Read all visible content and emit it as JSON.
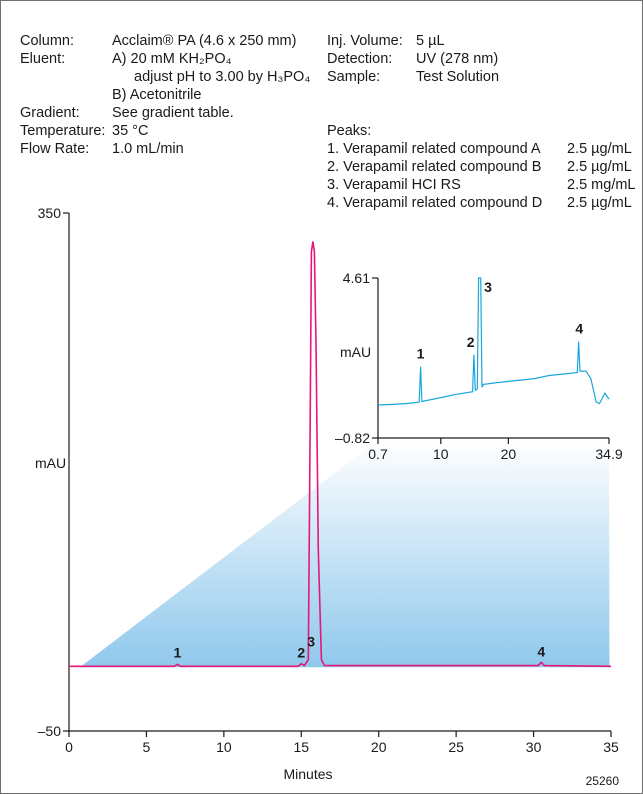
{
  "conditions": {
    "column_label": "Column:",
    "column_value": "Acclaim® PA (4.6 x 250 mm)",
    "eluent_label": "Eluent:",
    "eluent_a1": "A)  20 mM KH₂PO₄",
    "eluent_a2": "adjust pH to 3.00 by H₃PO₄",
    "eluent_b": "B)  Acetonitrile",
    "gradient_label": "Gradient:",
    "gradient_value": "See gradient table.",
    "temperature_label": "Temperature:",
    "temperature_value": "35 °C",
    "flow_label": "Flow Rate:",
    "flow_value": "1.0 mL/min",
    "inj_label": "Inj. Volume:",
    "inj_value": "5 µL",
    "detection_label": "Detection:",
    "detection_value": "UV (278 nm)",
    "sample_label": "Sample:",
    "sample_value": "Test Solution",
    "peaks_label": "Peaks:",
    "peaks": [
      {
        "name": "1. Verapamil related compound A",
        "conc": "2.5  µg/mL"
      },
      {
        "name": "2. Verapamil related compound B",
        "conc": "2.5  µg/mL"
      },
      {
        "name": "3. Verapamil HCI RS",
        "conc": "2.5  mg/mL"
      },
      {
        "name": "4. Verapamil related compound D",
        "conc": "2.5  µg/mL"
      }
    ]
  },
  "figure_code": "25260",
  "colors": {
    "main_trace": "#e5177b",
    "inset_trace": "#1aa6dc",
    "zoom_fill": "#8fc8ec"
  },
  "chart_data": [
    {
      "type": "line",
      "xlabel": "Minutes",
      "ylabel": "mAU",
      "xlim": [
        0,
        35
      ],
      "ylim": [
        -50,
        350
      ],
      "x_ticks": [
        0,
        5,
        10,
        15,
        20,
        25,
        30,
        35
      ],
      "y_ticks": [
        -50,
        350
      ],
      "peak_labels": [
        {
          "label": "1",
          "x": 7.0,
          "y": 2
        },
        {
          "label": "2",
          "x": 15.0,
          "y": 2
        },
        {
          "label": "3",
          "x": 15.7,
          "y": 328
        },
        {
          "label": "4",
          "x": 30.5,
          "y": 3
        }
      ],
      "series": [
        {
          "values": [
            [
              0,
              0
            ],
            [
              6.8,
              0
            ],
            [
              7.0,
              1.5
            ],
            [
              7.2,
              0
            ],
            [
              14.8,
              0
            ],
            [
              15.0,
              2
            ],
            [
              15.2,
              0.5
            ],
            [
              15.45,
              5
            ],
            [
              15.55,
              150
            ],
            [
              15.65,
              320
            ],
            [
              15.75,
              328
            ],
            [
              15.85,
              320
            ],
            [
              15.95,
              250
            ],
            [
              16.1,
              90
            ],
            [
              16.3,
              5
            ],
            [
              16.5,
              0.5
            ],
            [
              30.3,
              0.5
            ],
            [
              30.5,
              3
            ],
            [
              30.7,
              0.5
            ],
            [
              35,
              0
            ]
          ]
        }
      ]
    },
    {
      "type": "line",
      "xlim": [
        0.7,
        34.9
      ],
      "ylim": [
        -0.82,
        4.61
      ],
      "x_ticks": [
        0.7,
        10,
        20,
        34.9
      ],
      "y_ticks": [
        -0.82,
        4.61
      ],
      "ylabel": "mAU",
      "peak_labels": [
        {
          "label": "1",
          "x": 7.0,
          "y": 1.6
        },
        {
          "label": "2",
          "x": 15.0,
          "y": 2.0
        },
        {
          "label": "3",
          "x": 16.1,
          "y": 4.61
        },
        {
          "label": "4",
          "x": 30.5,
          "y": 2.45
        }
      ],
      "series": [
        {
          "values": [
            [
              0.7,
              0.3
            ],
            [
              3,
              0.32
            ],
            [
              5,
              0.35
            ],
            [
              6.8,
              0.4
            ],
            [
              7.0,
              1.6
            ],
            [
              7.2,
              0.42
            ],
            [
              10,
              0.55
            ],
            [
              12,
              0.65
            ],
            [
              14.7,
              0.75
            ],
            [
              14.9,
              2.0
            ],
            [
              15.1,
              0.8
            ],
            [
              15.4,
              0.85
            ],
            [
              15.6,
              4.61
            ],
            [
              15.9,
              4.61
            ],
            [
              16.1,
              0.9
            ],
            [
              16.3,
              1.0
            ],
            [
              18,
              1.05
            ],
            [
              20,
              1.1
            ],
            [
              22,
              1.15
            ],
            [
              24,
              1.2
            ],
            [
              26,
              1.3
            ],
            [
              28,
              1.35
            ],
            [
              30.2,
              1.4
            ],
            [
              30.4,
              2.45
            ],
            [
              30.6,
              1.45
            ],
            [
              31.5,
              1.45
            ],
            [
              32.2,
              1.2
            ],
            [
              33,
              0.4
            ],
            [
              33.5,
              0.35
            ],
            [
              34.3,
              0.7
            ],
            [
              34.9,
              0.5
            ]
          ]
        }
      ]
    }
  ]
}
